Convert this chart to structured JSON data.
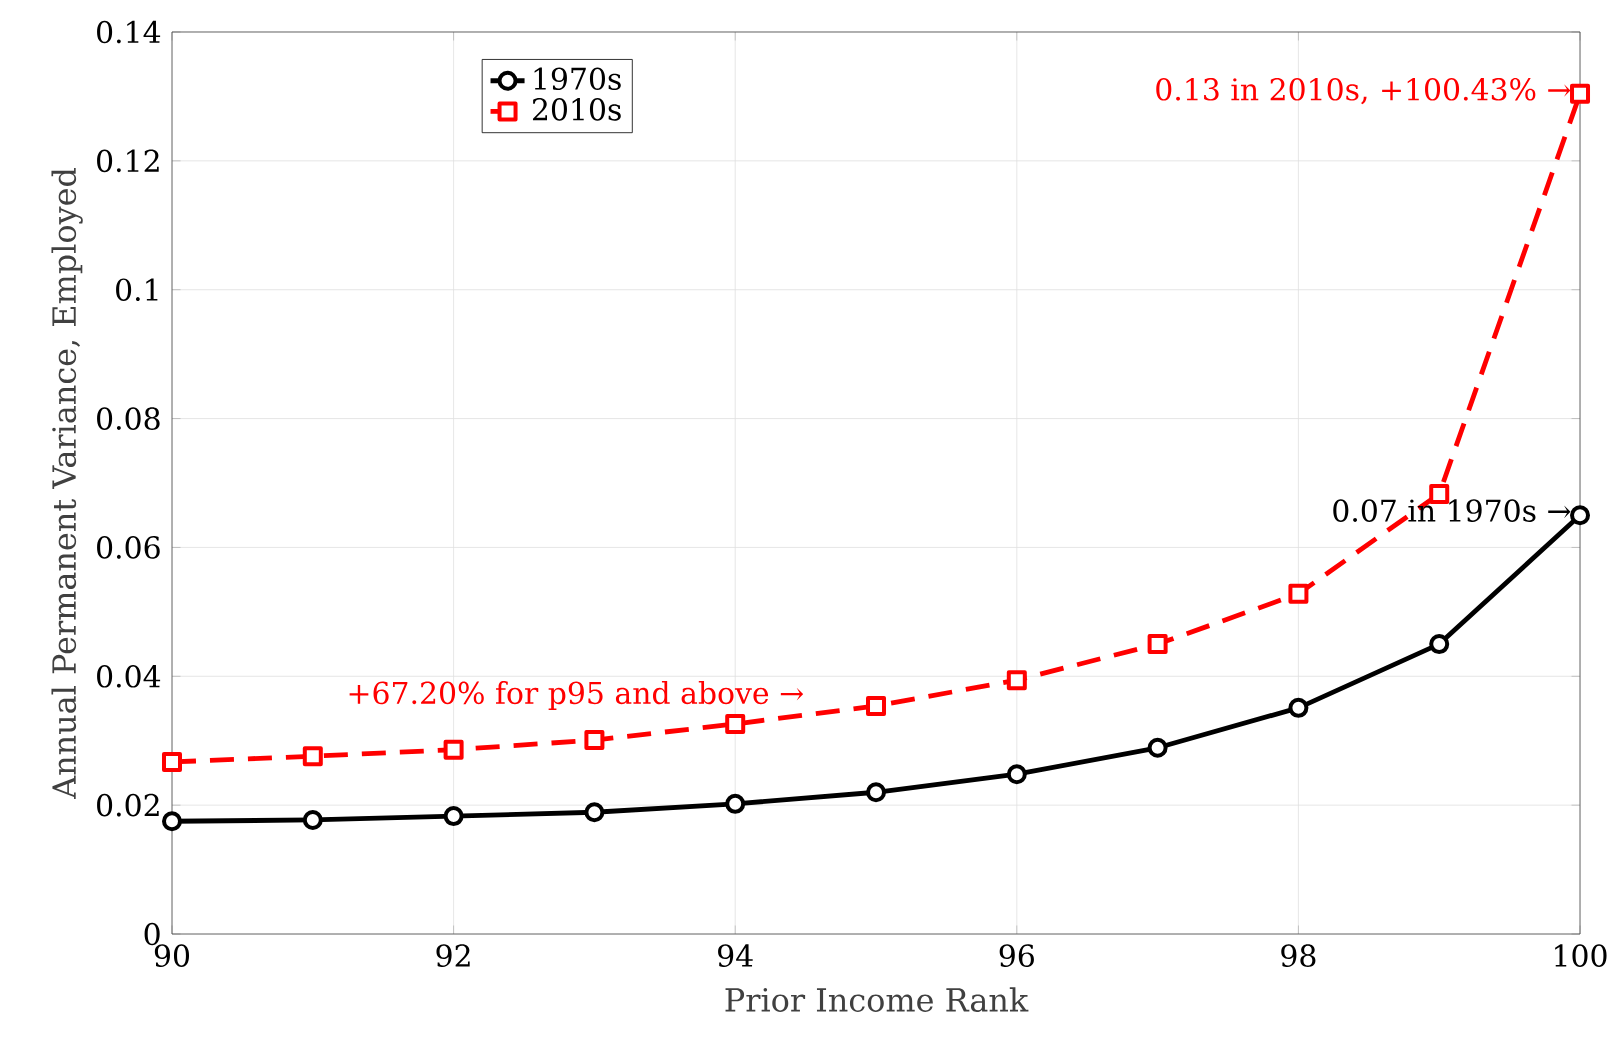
{
  "chart_data": {
    "type": "line",
    "xlabel": "Prior Income Rank",
    "ylabel": "Annual Permanent Variance, Employed",
    "x": [
      90,
      91,
      92,
      93,
      94,
      95,
      96,
      97,
      98,
      99,
      100
    ],
    "series": [
      {
        "name": "1970s",
        "color": "#000000",
        "marker": "circle",
        "line_style": "solid",
        "values": [
          0.0175,
          0.0177,
          0.0183,
          0.0189,
          0.0202,
          0.022,
          0.0248,
          0.0289,
          0.0351,
          0.045,
          0.065
        ]
      },
      {
        "name": "2010s",
        "color": "#ff0000",
        "marker": "square",
        "line_style": "dashed",
        "values": [
          0.0267,
          0.0276,
          0.0286,
          0.0301,
          0.0326,
          0.0354,
          0.0394,
          0.045,
          0.0528,
          0.0683,
          0.1304
        ]
      }
    ],
    "xlim": [
      90,
      100
    ],
    "xticks": [
      90,
      92,
      94,
      96,
      98,
      100
    ],
    "ylim": [
      0,
      0.14
    ],
    "yticks": [
      0,
      0.02,
      0.04,
      0.06,
      0.08,
      0.1,
      0.12,
      0.14
    ],
    "grid": true,
    "legend": "top left",
    "annotations": [
      "0.13 in 2010s, +100.43% →",
      "0.07 in 1970s →",
      "+67.20% for p95 and above →"
    ]
  }
}
